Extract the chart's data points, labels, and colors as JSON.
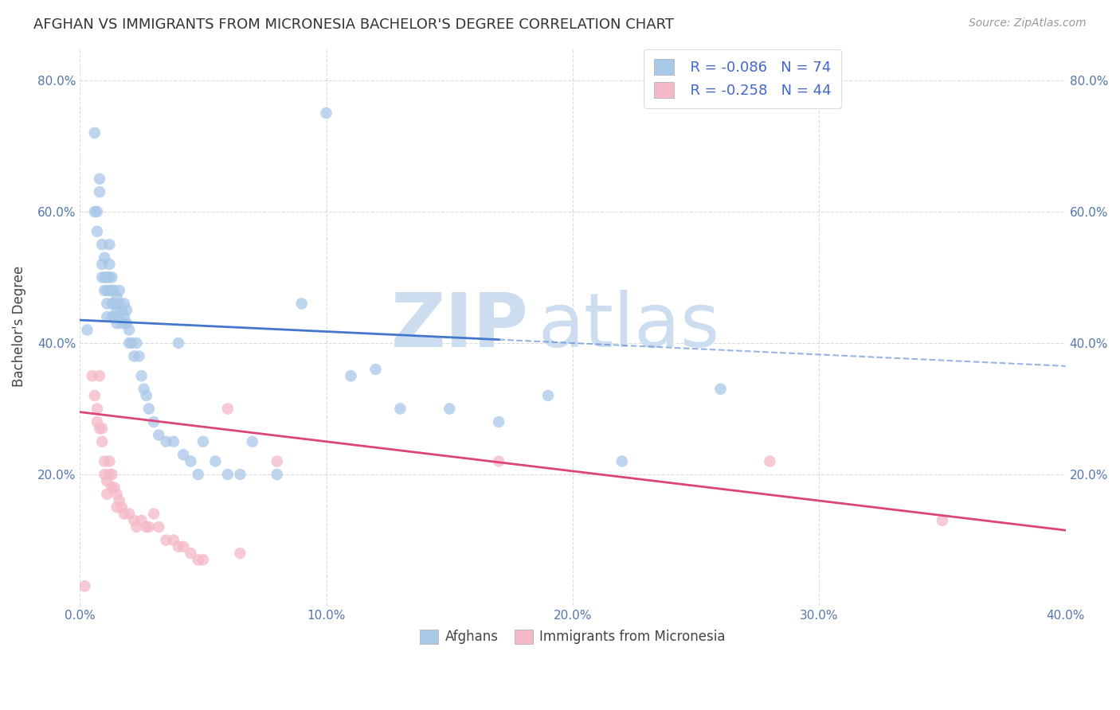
{
  "title": "AFGHAN VS IMMIGRANTS FROM MICRONESIA BACHELOR'S DEGREE CORRELATION CHART",
  "source": "Source: ZipAtlas.com",
  "ylabel": "Bachelor's Degree",
  "xlim": [
    0.0,
    0.4
  ],
  "ylim": [
    0.0,
    0.85
  ],
  "blue_color": "#a8c8e8",
  "pink_color": "#f5b8c8",
  "trend_blue_color": "#4477cc",
  "trend_pink_color": "#dd4477",
  "trend_blue_solid_end": 0.17,
  "trend_blue_y0": 0.435,
  "trend_blue_y1": 0.365,
  "trend_pink_y0": 0.295,
  "trend_pink_y1": 0.115,
  "afghans_x": [
    0.003,
    0.006,
    0.006,
    0.007,
    0.007,
    0.008,
    0.008,
    0.009,
    0.009,
    0.009,
    0.01,
    0.01,
    0.01,
    0.011,
    0.011,
    0.011,
    0.011,
    0.012,
    0.012,
    0.012,
    0.012,
    0.013,
    0.013,
    0.013,
    0.013,
    0.014,
    0.014,
    0.014,
    0.015,
    0.015,
    0.015,
    0.016,
    0.016,
    0.016,
    0.017,
    0.017,
    0.018,
    0.018,
    0.019,
    0.019,
    0.02,
    0.02,
    0.021,
    0.022,
    0.023,
    0.024,
    0.025,
    0.026,
    0.027,
    0.028,
    0.03,
    0.032,
    0.035,
    0.038,
    0.04,
    0.042,
    0.045,
    0.048,
    0.05,
    0.055,
    0.06,
    0.065,
    0.07,
    0.08,
    0.09,
    0.1,
    0.11,
    0.12,
    0.13,
    0.15,
    0.17,
    0.19,
    0.22,
    0.26
  ],
  "afghans_y": [
    0.42,
    0.72,
    0.6,
    0.6,
    0.57,
    0.63,
    0.65,
    0.55,
    0.52,
    0.5,
    0.53,
    0.5,
    0.48,
    0.5,
    0.48,
    0.46,
    0.44,
    0.55,
    0.52,
    0.5,
    0.48,
    0.5,
    0.48,
    0.46,
    0.44,
    0.48,
    0.46,
    0.44,
    0.47,
    0.45,
    0.43,
    0.48,
    0.46,
    0.44,
    0.45,
    0.43,
    0.46,
    0.44,
    0.45,
    0.43,
    0.42,
    0.4,
    0.4,
    0.38,
    0.4,
    0.38,
    0.35,
    0.33,
    0.32,
    0.3,
    0.28,
    0.26,
    0.25,
    0.25,
    0.4,
    0.23,
    0.22,
    0.2,
    0.25,
    0.22,
    0.2,
    0.2,
    0.25,
    0.2,
    0.46,
    0.75,
    0.35,
    0.36,
    0.3,
    0.3,
    0.28,
    0.32,
    0.22,
    0.33
  ],
  "micronesia_x": [
    0.002,
    0.005,
    0.006,
    0.007,
    0.007,
    0.008,
    0.008,
    0.009,
    0.009,
    0.01,
    0.01,
    0.011,
    0.011,
    0.012,
    0.012,
    0.013,
    0.013,
    0.014,
    0.015,
    0.015,
    0.016,
    0.017,
    0.018,
    0.02,
    0.022,
    0.023,
    0.025,
    0.027,
    0.028,
    0.03,
    0.032,
    0.035,
    0.038,
    0.04,
    0.042,
    0.045,
    0.048,
    0.05,
    0.06,
    0.065,
    0.08,
    0.17,
    0.28,
    0.35
  ],
  "micronesia_y": [
    0.03,
    0.35,
    0.32,
    0.3,
    0.28,
    0.35,
    0.27,
    0.27,
    0.25,
    0.22,
    0.2,
    0.19,
    0.17,
    0.22,
    0.2,
    0.2,
    0.18,
    0.18,
    0.17,
    0.15,
    0.16,
    0.15,
    0.14,
    0.14,
    0.13,
    0.12,
    0.13,
    0.12,
    0.12,
    0.14,
    0.12,
    0.1,
    0.1,
    0.09,
    0.09,
    0.08,
    0.07,
    0.07,
    0.3,
    0.08,
    0.22,
    0.22,
    0.22,
    0.13
  ]
}
